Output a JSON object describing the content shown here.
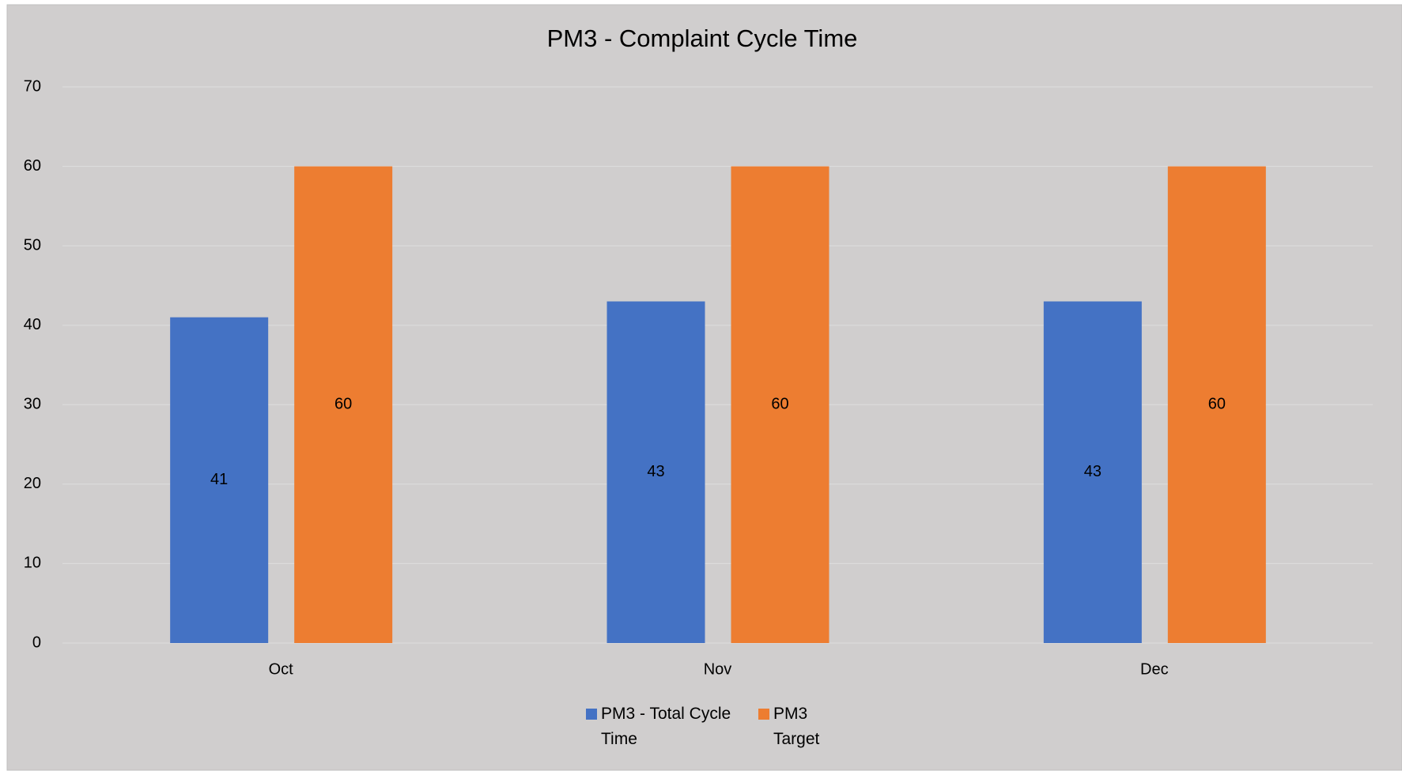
{
  "chart_data": {
    "type": "bar",
    "title": "PM3 - Complaint Cycle Time",
    "categories": [
      "Oct",
      "Nov",
      "Dec"
    ],
    "series": [
      {
        "name": "PM3 - Total Cycle Time",
        "color": "#4472c4",
        "values": [
          41,
          43,
          43
        ]
      },
      {
        "name": "PM3 Target",
        "color": "#ed7d31",
        "values": [
          60,
          60,
          60
        ]
      }
    ],
    "ylim": [
      0,
      70
    ],
    "yticks": [
      0,
      10,
      20,
      30,
      40,
      50,
      60,
      70
    ],
    "grid": true,
    "legend": "bottom"
  }
}
